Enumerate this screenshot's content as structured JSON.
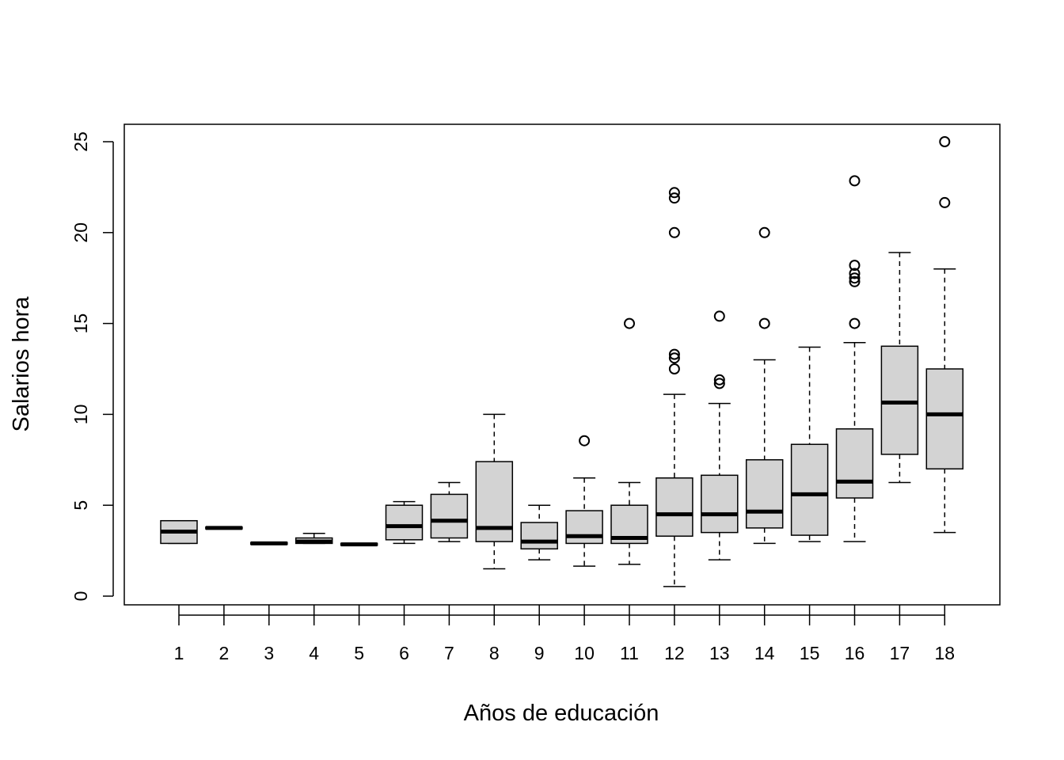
{
  "chart_data": {
    "type": "boxplot",
    "xlabel": "Años de educación",
    "ylabel": "Salarios hora",
    "ylim": [
      0,
      25
    ],
    "yticks": [
      0,
      5,
      10,
      15,
      20,
      25
    ],
    "categories": [
      "1",
      "2",
      "3",
      "4",
      "5",
      "6",
      "7",
      "8",
      "9",
      "10",
      "11",
      "12",
      "13",
      "14",
      "15",
      "16",
      "17",
      "18"
    ],
    "boxes": [
      {
        "category": "1",
        "lower": 2.9,
        "q1": 2.9,
        "median": 3.55,
        "q3": 4.15,
        "upper": 4.15,
        "outliers": []
      },
      {
        "category": "2",
        "lower": 3.75,
        "q1": 3.7,
        "median": 3.75,
        "q3": 3.8,
        "upper": 3.75,
        "outliers": []
      },
      {
        "category": "3",
        "lower": 2.9,
        "q1": 2.85,
        "median": 2.9,
        "q3": 2.95,
        "upper": 2.9,
        "outliers": []
      },
      {
        "category": "4",
        "lower": 2.9,
        "q1": 2.9,
        "median": 3.0,
        "q3": 3.2,
        "upper": 3.45,
        "outliers": []
      },
      {
        "category": "5",
        "lower": 2.85,
        "q1": 2.8,
        "median": 2.85,
        "q3": 2.9,
        "upper": 2.85,
        "outliers": []
      },
      {
        "category": "6",
        "lower": 2.9,
        "q1": 3.1,
        "median": 3.85,
        "q3": 5.0,
        "upper": 5.2,
        "outliers": []
      },
      {
        "category": "7",
        "lower": 3.0,
        "q1": 3.2,
        "median": 4.15,
        "q3": 5.6,
        "upper": 6.25,
        "outliers": []
      },
      {
        "category": "8",
        "lower": 1.5,
        "q1": 3.0,
        "median": 3.75,
        "q3": 7.4,
        "upper": 10.0,
        "outliers": []
      },
      {
        "category": "9",
        "lower": 2.0,
        "q1": 2.6,
        "median": 3.0,
        "q3": 4.05,
        "upper": 5.0,
        "outliers": []
      },
      {
        "category": "10",
        "lower": 1.65,
        "q1": 2.9,
        "median": 3.3,
        "q3": 4.7,
        "upper": 6.5,
        "outliers": [
          8.55
        ]
      },
      {
        "category": "11",
        "lower": 1.75,
        "q1": 2.9,
        "median": 3.2,
        "q3": 5.0,
        "upper": 6.25,
        "outliers": [
          15.0
        ]
      },
      {
        "category": "12",
        "lower": 0.53,
        "q1": 3.3,
        "median": 4.5,
        "q3": 6.5,
        "upper": 11.1,
        "outliers": [
          12.5,
          13.1,
          13.3,
          20.0,
          21.9,
          22.2
        ]
      },
      {
        "category": "13",
        "lower": 2.0,
        "q1": 3.5,
        "median": 4.5,
        "q3": 6.65,
        "upper": 10.6,
        "outliers": [
          11.7,
          11.9,
          15.4
        ]
      },
      {
        "category": "14",
        "lower": 2.9,
        "q1": 3.75,
        "median": 4.65,
        "q3": 7.5,
        "upper": 13.0,
        "outliers": [
          15.0,
          20.0
        ]
      },
      {
        "category": "15",
        "lower": 3.0,
        "q1": 3.35,
        "median": 5.6,
        "q3": 8.35,
        "upper": 13.7,
        "outliers": []
      },
      {
        "category": "16",
        "lower": 3.0,
        "q1": 5.4,
        "median": 6.3,
        "q3": 9.2,
        "upper": 13.95,
        "outliers": [
          15.0,
          17.3,
          17.5,
          17.75,
          18.2,
          22.85
        ]
      },
      {
        "category": "17",
        "lower": 6.25,
        "q1": 7.8,
        "median": 10.65,
        "q3": 13.75,
        "upper": 18.9,
        "outliers": []
      },
      {
        "category": "18",
        "lower": 3.5,
        "q1": 7.0,
        "median": 10.0,
        "q3": 12.5,
        "upper": 18.0,
        "outliers": [
          21.65,
          25.0
        ]
      }
    ],
    "box_fill": "#d3d3d3",
    "line_color": "#000000",
    "grid": false,
    "legend": "none"
  }
}
